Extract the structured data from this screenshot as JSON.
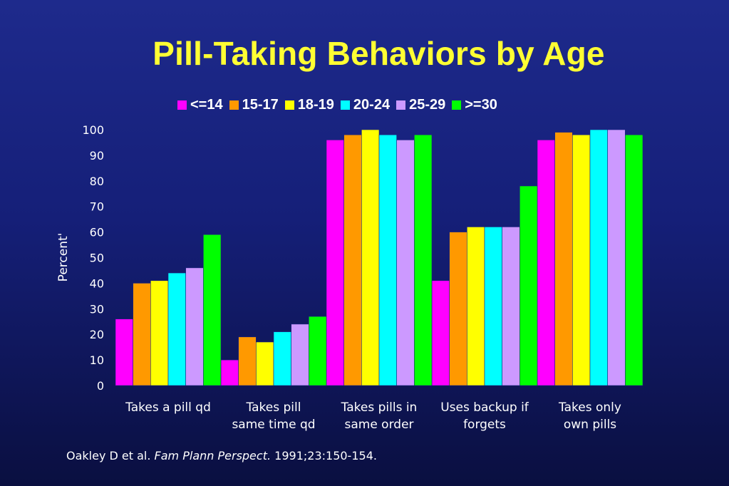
{
  "title": "Pill-Taking Behaviors by Age",
  "citation": {
    "authors": "Oakley D et al.",
    "journal": "Fam Plann Perspect.",
    "ref": "1991;23:150-154."
  },
  "chart_data": {
    "type": "bar",
    "title": "Pill-Taking Behaviors by Age",
    "ylabel": "Percent'",
    "xlabel": "",
    "ylim": [
      0,
      100
    ],
    "yticks": [
      0,
      10,
      20,
      30,
      40,
      50,
      60,
      70,
      80,
      90,
      100
    ],
    "grid": false,
    "legend_position": "top",
    "categories": [
      [
        "Takes a pill qd"
      ],
      [
        "Takes pill",
        "same time qd"
      ],
      [
        "Takes pills in",
        "same order"
      ],
      [
        "Uses backup if",
        "forgets"
      ],
      [
        "Takes only",
        "own pills"
      ]
    ],
    "series": [
      {
        "name": "<=14",
        "color": "#ff00ff",
        "values": [
          26,
          10,
          96,
          41,
          96
        ]
      },
      {
        "name": "15-17",
        "color": "#ff9900",
        "values": [
          40,
          19,
          98,
          60,
          99
        ]
      },
      {
        "name": "18-19",
        "color": "#ffff00",
        "values": [
          41,
          17,
          100,
          62,
          98
        ]
      },
      {
        "name": "20-24",
        "color": "#00ffff",
        "values": [
          44,
          21,
          98,
          62,
          100
        ]
      },
      {
        "name": "25-29",
        "color": "#cc99ff",
        "values": [
          46,
          24,
          96,
          62,
          100
        ]
      },
      {
        "name": ">=30",
        "color": "#00ff00",
        "values": [
          59,
          27,
          98,
          78,
          98
        ]
      }
    ]
  }
}
